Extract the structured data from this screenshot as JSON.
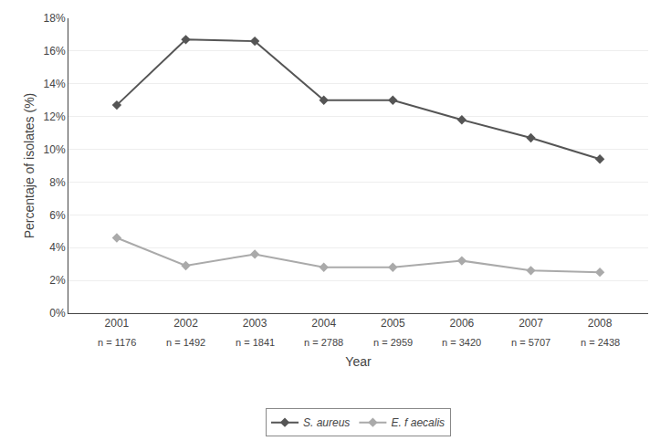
{
  "chart_data": {
    "type": "line",
    "x": [
      2001,
      2002,
      2003,
      2004,
      2005,
      2006,
      2007,
      2008
    ],
    "series": [
      {
        "name": "S. aureus",
        "color": "#555555",
        "marker": "diamond",
        "values": [
          12.7,
          16.7,
          16.6,
          13.0,
          13.0,
          11.8,
          10.7,
          9.4
        ]
      },
      {
        "name": "E. f aecalis",
        "color": "#aaaaaa",
        "marker": "diamond",
        "values": [
          4.6,
          2.9,
          3.6,
          2.8,
          2.8,
          3.2,
          2.6,
          2.5
        ]
      }
    ],
    "xlabel": "Year",
    "ylabel": "Percentaje of isolates (%)",
    "xlim": [
      2000.3,
      2008.7
    ],
    "xticks": [
      2001,
      2002,
      2003,
      2004,
      2005,
      2006,
      2007,
      2008
    ],
    "ylim": [
      0,
      18
    ],
    "yticks": [
      {
        "value": 0,
        "label": "0%"
      },
      {
        "value": 2,
        "label": "2%"
      },
      {
        "value": 4,
        "label": "4%"
      },
      {
        "value": 6,
        "label": "6%"
      },
      {
        "value": 8,
        "label": "8%"
      },
      {
        "value": 10,
        "label": "10%"
      },
      {
        "value": 12,
        "label": "12%"
      },
      {
        "value": 14,
        "label": "14%"
      },
      {
        "value": 16,
        "label": "16%"
      },
      {
        "value": 18,
        "label": "18%"
      }
    ],
    "grid": "y",
    "legend": "bottom",
    "annotations": [
      {
        "x": 2001,
        "text": "n = 1176"
      },
      {
        "x": 2002,
        "text": "n = 1492"
      },
      {
        "x": 2003,
        "text": "n = 1841"
      },
      {
        "x": 2004,
        "text": "n = 2788"
      },
      {
        "x": 2005,
        "text": "n = 2959"
      },
      {
        "x": 2006,
        "text": "n = 3420"
      },
      {
        "x": 2007,
        "text": "n = 5707"
      },
      {
        "x": 2008,
        "text": "n = 2438"
      }
    ]
  }
}
